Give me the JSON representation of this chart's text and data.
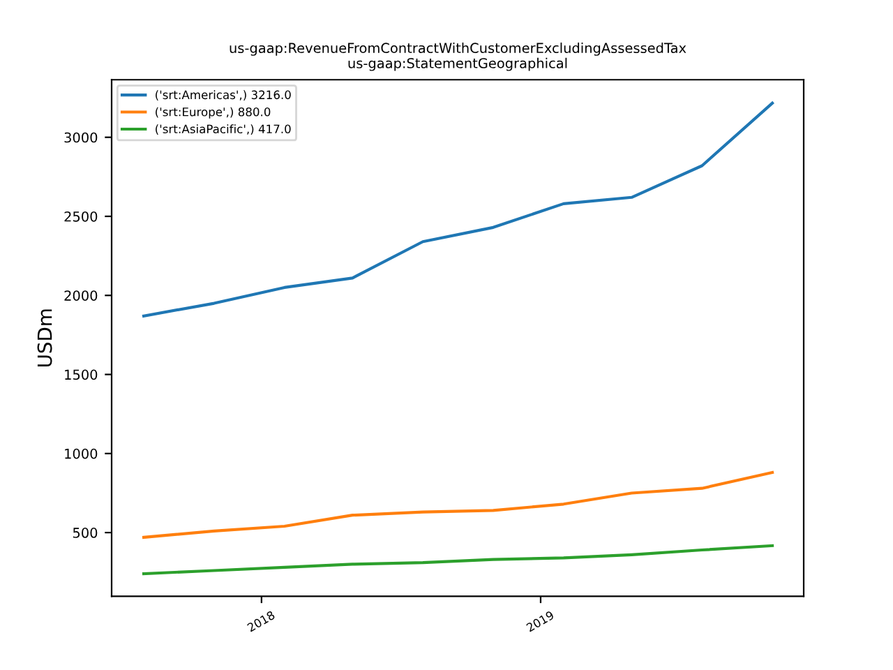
{
  "chart_data": {
    "type": "line",
    "title": "us-gaap:RevenueFromContractWithCustomerExcludingAssessedTax\nus-gaap:StatementGeographical",
    "ylabel": "USDm",
    "x": [
      "2017-07-31",
      "2017-10-31",
      "2018-01-31",
      "2018-04-30",
      "2018-07-31",
      "2018-10-31",
      "2019-01-31",
      "2019-04-30",
      "2019-07-31",
      "2019-10-31"
    ],
    "series": [
      {
        "name": "('srt:Americas',) 3216.0",
        "color": "#1f77b4",
        "values": [
          1870,
          1950,
          2050,
          2110,
          2340,
          2430,
          2580,
          2620,
          2820,
          3216
        ]
      },
      {
        "name": "('srt:Europe',) 880.0",
        "color": "#ff7f0e",
        "values": [
          470,
          510,
          540,
          610,
          630,
          640,
          680,
          750,
          780,
          880
        ]
      },
      {
        "name": "('srt:AsiaPacific',) 417.0",
        "color": "#2ca02c",
        "values": [
          240,
          260,
          280,
          300,
          310,
          330,
          340,
          360,
          390,
          417
        ]
      }
    ],
    "xlim": [
      "2017-06-19",
      "2019-12-11"
    ],
    "xticks": [
      {
        "value": "2018-01-01",
        "label": "2018"
      },
      {
        "value": "2019-01-01",
        "label": "2019"
      }
    ],
    "ylim": [
      97,
      3364
    ],
    "yticks": [
      500,
      1000,
      1500,
      2000,
      2500,
      3000
    ],
    "grid": false,
    "legend": "top left",
    "marker": "none",
    "line_style": "solid"
  }
}
